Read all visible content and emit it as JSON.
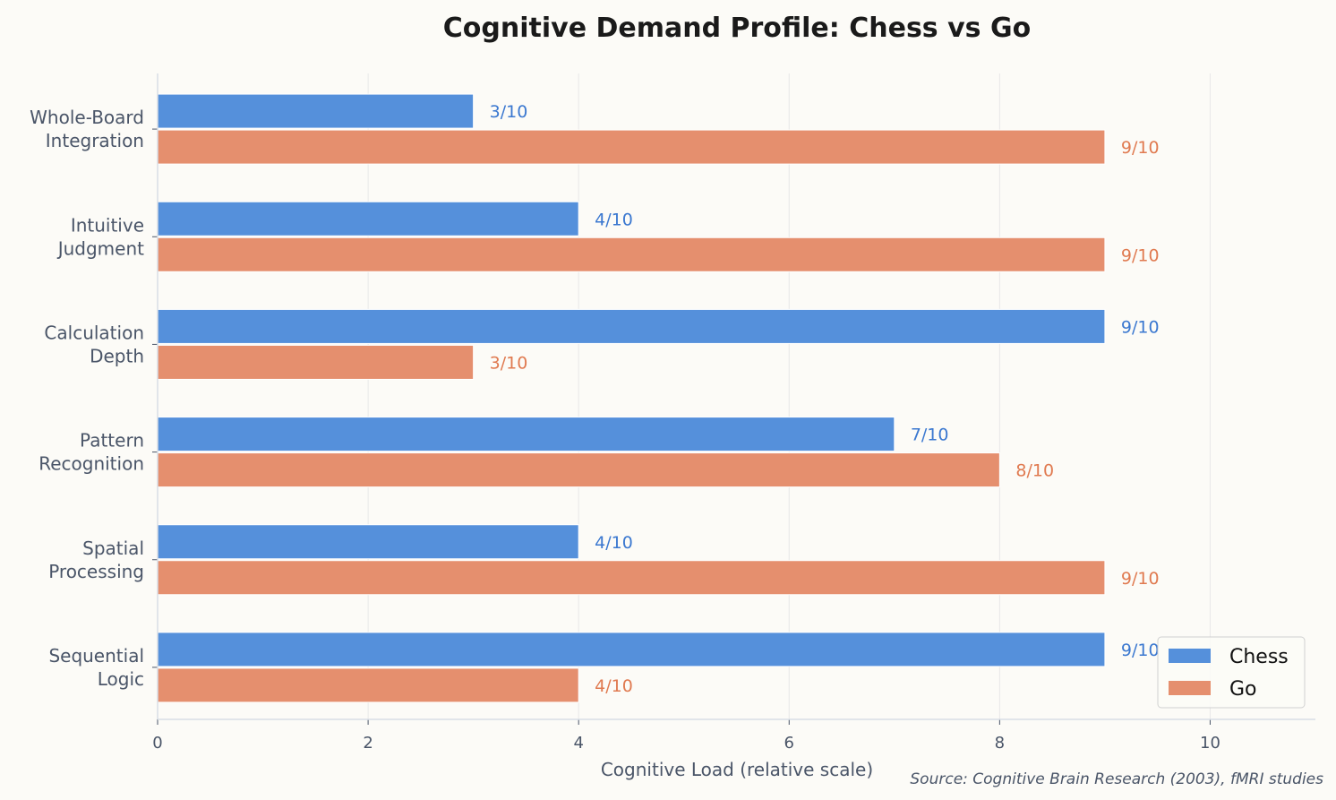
{
  "chart_data": {
    "type": "bar",
    "orientation": "horizontal",
    "title": "Cognitive Demand Profile: Chess vs Go",
    "xlabel": "Cognitive Load (relative scale)",
    "ylabel": "",
    "xlim": [
      0,
      11
    ],
    "xticks": [
      0,
      2,
      4,
      6,
      8,
      10
    ],
    "grid": true,
    "legend_placement": "bottom-right",
    "categories": [
      [
        "Whole-Board",
        "Integration"
      ],
      [
        "Intuitive",
        "Judgment"
      ],
      [
        "Calculation",
        "Depth"
      ],
      [
        "Pattern",
        "Recognition"
      ],
      [
        "Spatial",
        "Processing"
      ],
      [
        "Sequential",
        "Logic"
      ]
    ],
    "series": [
      {
        "name": "Chess",
        "color": "#5590DB",
        "label_color": "#3B78D0",
        "values": [
          3,
          4,
          9,
          7,
          4,
          9
        ],
        "labels": [
          "3/10",
          "4/10",
          "9/10",
          "7/10",
          "4/10",
          "9/10"
        ]
      },
      {
        "name": "Go",
        "color": "#E58F6E",
        "label_color": "#E07A50",
        "values": [
          9,
          9,
          3,
          8,
          9,
          4
        ],
        "labels": [
          "9/10",
          "9/10",
          "3/10",
          "8/10",
          "9/10",
          "4/10"
        ]
      }
    ],
    "source": "Source: Cognitive Brain Research (2003), fMRI studies"
  }
}
